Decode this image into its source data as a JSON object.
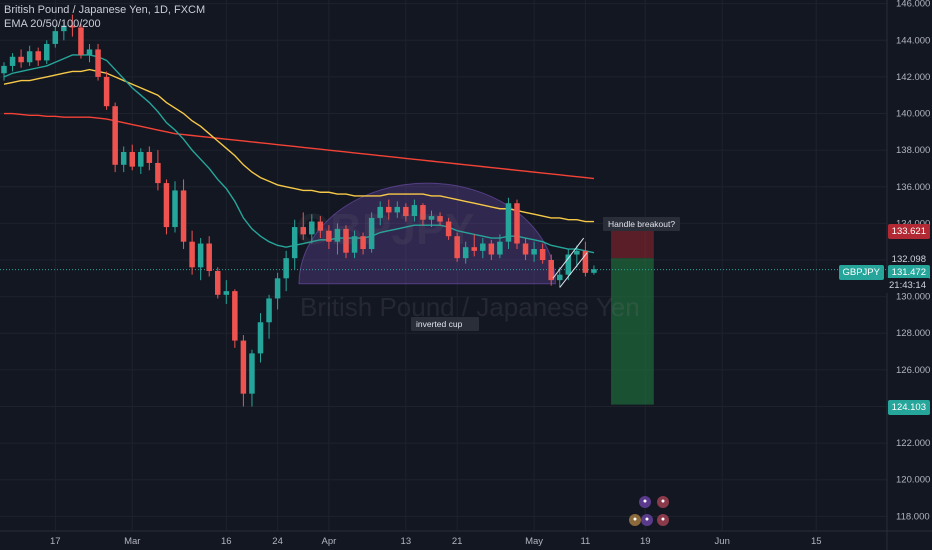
{
  "header": {
    "title": "British Pound / Japanese Yen, 1D, FXCM",
    "indicator": "EMA 20/50/100/200"
  },
  "watermark": {
    "symbol": "GBPJPY",
    "name": "British Pound / Japanese Yen"
  },
  "annotations": {
    "handle": "Handle breakout?",
    "cup": "inverted cup"
  },
  "price_tags": {
    "stop": "133.621",
    "entry": "132.098",
    "symbol": "GBPJPY",
    "last": "131.472",
    "countdown": "21:43:14",
    "target": "124.103"
  },
  "colors": {
    "background": "#131722",
    "up": "#26a69a",
    "down": "#ef5350",
    "ema20": "#26a69a",
    "ema50": "#f7c948",
    "ema200": "#f44336",
    "cup_fill": "#7e57c2"
  },
  "chart_data": {
    "type": "candlestick",
    "title": "British Pound / Japanese Yen, 1D, FXCM",
    "y_ticks": [
      118,
      120,
      122,
      124,
      126,
      128,
      130,
      132,
      134,
      136,
      138,
      140,
      142,
      144,
      146
    ],
    "y_tick_labels": [
      "118.000",
      "120.000",
      "122.000",
      "124.000",
      "126.000",
      "128.000",
      "130.000",
      "132.000",
      "134.000",
      "136.000",
      "138.000",
      "140.000",
      "142.000",
      "144.000",
      "146.000"
    ],
    "ylim": [
      117.2,
      146.2
    ],
    "x_ticks": [
      {
        "i": 6,
        "label": "17"
      },
      {
        "i": 15,
        "label": "Mar"
      },
      {
        "i": 26,
        "label": "16"
      },
      {
        "i": 32,
        "label": "24"
      },
      {
        "i": 38,
        "label": "Apr"
      },
      {
        "i": 47,
        "label": "13"
      },
      {
        "i": 53,
        "label": "21"
      },
      {
        "i": 62,
        "label": "May"
      },
      {
        "i": 68,
        "label": "11"
      },
      {
        "i": 75,
        "label": "19"
      },
      {
        "i": 84,
        "label": "Jun"
      },
      {
        "i": 95,
        "label": "15"
      }
    ],
    "candles": [
      {
        "o": 142.2,
        "h": 142.8,
        "l": 141.8,
        "c": 142.6
      },
      {
        "o": 142.6,
        "h": 143.3,
        "l": 142.3,
        "c": 143.1
      },
      {
        "o": 143.1,
        "h": 143.5,
        "l": 142.5,
        "c": 142.8
      },
      {
        "o": 142.8,
        "h": 143.7,
        "l": 142.6,
        "c": 143.4
      },
      {
        "o": 143.4,
        "h": 143.6,
        "l": 142.6,
        "c": 142.9
      },
      {
        "o": 142.9,
        "h": 144.0,
        "l": 142.7,
        "c": 143.8
      },
      {
        "o": 143.8,
        "h": 144.8,
        "l": 143.6,
        "c": 144.5
      },
      {
        "o": 144.5,
        "h": 145.0,
        "l": 144.0,
        "c": 144.8
      },
      {
        "o": 144.8,
        "h": 145.4,
        "l": 144.2,
        "c": 144.7
      },
      {
        "o": 144.7,
        "h": 144.9,
        "l": 143.0,
        "c": 143.2
      },
      {
        "o": 143.2,
        "h": 143.8,
        "l": 142.8,
        "c": 143.5
      },
      {
        "o": 143.5,
        "h": 143.8,
        "l": 141.8,
        "c": 142.0
      },
      {
        "o": 142.0,
        "h": 142.3,
        "l": 140.2,
        "c": 140.4
      },
      {
        "o": 140.4,
        "h": 140.6,
        "l": 136.8,
        "c": 137.2
      },
      {
        "o": 137.2,
        "h": 138.2,
        "l": 136.8,
        "c": 137.9
      },
      {
        "o": 137.9,
        "h": 138.3,
        "l": 136.9,
        "c": 137.1
      },
      {
        "o": 137.1,
        "h": 138.1,
        "l": 136.7,
        "c": 137.9
      },
      {
        "o": 137.9,
        "h": 138.2,
        "l": 136.9,
        "c": 137.3
      },
      {
        "o": 137.3,
        "h": 138.0,
        "l": 135.8,
        "c": 136.2
      },
      {
        "o": 136.2,
        "h": 136.4,
        "l": 133.4,
        "c": 133.8
      },
      {
        "o": 133.8,
        "h": 136.3,
        "l": 133.5,
        "c": 135.8
      },
      {
        "o": 135.8,
        "h": 136.4,
        "l": 132.6,
        "c": 133.0
      },
      {
        "o": 133.0,
        "h": 133.6,
        "l": 131.2,
        "c": 131.6
      },
      {
        "o": 131.6,
        "h": 133.2,
        "l": 130.9,
        "c": 132.9
      },
      {
        "o": 132.9,
        "h": 133.3,
        "l": 131.1,
        "c": 131.4
      },
      {
        "o": 131.4,
        "h": 131.6,
        "l": 129.9,
        "c": 130.1
      },
      {
        "o": 130.1,
        "h": 130.9,
        "l": 129.6,
        "c": 130.3
      },
      {
        "o": 130.3,
        "h": 130.4,
        "l": 127.2,
        "c": 127.6
      },
      {
        "o": 127.6,
        "h": 127.9,
        "l": 124.0,
        "c": 124.7
      },
      {
        "o": 124.7,
        "h": 127.1,
        "l": 124.0,
        "c": 126.9
      },
      {
        "o": 126.9,
        "h": 129.1,
        "l": 126.4,
        "c": 128.6
      },
      {
        "o": 128.6,
        "h": 130.1,
        "l": 127.7,
        "c": 129.9
      },
      {
        "o": 129.9,
        "h": 131.3,
        "l": 129.3,
        "c": 131.0
      },
      {
        "o": 131.0,
        "h": 132.5,
        "l": 130.3,
        "c": 132.1
      },
      {
        "o": 132.1,
        "h": 134.2,
        "l": 131.5,
        "c": 133.8
      },
      {
        "o": 133.8,
        "h": 134.6,
        "l": 133.1,
        "c": 133.4
      },
      {
        "o": 133.4,
        "h": 134.5,
        "l": 132.9,
        "c": 134.1
      },
      {
        "o": 134.1,
        "h": 134.4,
        "l": 133.2,
        "c": 133.6
      },
      {
        "o": 133.6,
        "h": 133.9,
        "l": 132.6,
        "c": 133.0
      },
      {
        "o": 133.0,
        "h": 134.0,
        "l": 132.3,
        "c": 133.7
      },
      {
        "o": 133.7,
        "h": 133.9,
        "l": 132.1,
        "c": 132.4
      },
      {
        "o": 132.4,
        "h": 133.6,
        "l": 132.1,
        "c": 133.3
      },
      {
        "o": 133.3,
        "h": 133.5,
        "l": 132.3,
        "c": 132.6
      },
      {
        "o": 132.6,
        "h": 134.6,
        "l": 132.4,
        "c": 134.3
      },
      {
        "o": 134.3,
        "h": 135.2,
        "l": 133.9,
        "c": 134.9
      },
      {
        "o": 134.9,
        "h": 135.3,
        "l": 134.2,
        "c": 134.6
      },
      {
        "o": 134.6,
        "h": 135.2,
        "l": 134.3,
        "c": 134.9
      },
      {
        "o": 134.9,
        "h": 135.1,
        "l": 134.1,
        "c": 134.4
      },
      {
        "o": 134.4,
        "h": 135.3,
        "l": 134.1,
        "c": 135.0
      },
      {
        "o": 135.0,
        "h": 135.1,
        "l": 133.9,
        "c": 134.2
      },
      {
        "o": 134.2,
        "h": 134.7,
        "l": 133.8,
        "c": 134.4
      },
      {
        "o": 134.4,
        "h": 134.6,
        "l": 133.9,
        "c": 134.1
      },
      {
        "o": 134.1,
        "h": 134.3,
        "l": 133.1,
        "c": 133.3
      },
      {
        "o": 133.3,
        "h": 133.5,
        "l": 131.9,
        "c": 132.1
      },
      {
        "o": 132.1,
        "h": 133.0,
        "l": 131.8,
        "c": 132.7
      },
      {
        "o": 132.7,
        "h": 133.4,
        "l": 132.2,
        "c": 132.5
      },
      {
        "o": 132.5,
        "h": 133.2,
        "l": 132.1,
        "c": 132.9
      },
      {
        "o": 132.9,
        "h": 133.1,
        "l": 132.0,
        "c": 132.3
      },
      {
        "o": 132.3,
        "h": 133.4,
        "l": 132.1,
        "c": 133.0
      },
      {
        "o": 133.0,
        "h": 135.4,
        "l": 132.6,
        "c": 135.1
      },
      {
        "o": 135.1,
        "h": 135.3,
        "l": 132.6,
        "c": 132.9
      },
      {
        "o": 132.9,
        "h": 133.2,
        "l": 132.0,
        "c": 132.3
      },
      {
        "o": 132.3,
        "h": 133.0,
        "l": 131.9,
        "c": 132.6
      },
      {
        "o": 132.6,
        "h": 132.9,
        "l": 131.8,
        "c": 132.0
      },
      {
        "o": 132.0,
        "h": 132.3,
        "l": 130.6,
        "c": 130.9
      },
      {
        "o": 130.9,
        "h": 131.6,
        "l": 130.5,
        "c": 131.2
      },
      {
        "o": 131.2,
        "h": 132.6,
        "l": 130.9,
        "c": 132.3
      },
      {
        "o": 132.3,
        "h": 132.8,
        "l": 131.6,
        "c": 132.5
      },
      {
        "o": 132.5,
        "h": 133.0,
        "l": 131.1,
        "c": 131.3
      },
      {
        "o": 131.3,
        "h": 131.7,
        "l": 131.2,
        "c": 131.5
      }
    ],
    "ema20": [
      142.0,
      142.2,
      142.3,
      142.4,
      142.5,
      142.6,
      142.8,
      143.0,
      143.2,
      143.2,
      143.2,
      143.1,
      142.9,
      142.4,
      141.9,
      141.4,
      141.0,
      140.6,
      140.1,
      139.5,
      139.1,
      138.6,
      138.0,
      137.5,
      137.0,
      136.4,
      135.9,
      135.2,
      134.3,
      133.7,
      133.3,
      133.0,
      132.8,
      132.7,
      132.8,
      132.9,
      133.0,
      133.1,
      133.1,
      133.2,
      133.2,
      133.2,
      133.2,
      133.3,
      133.5,
      133.6,
      133.7,
      133.8,
      133.9,
      133.9,
      133.9,
      133.9,
      133.8,
      133.6,
      133.5,
      133.4,
      133.3,
      133.2,
      133.2,
      133.3,
      133.3,
      133.2,
      133.1,
      133.0,
      132.8,
      132.7,
      132.6,
      132.6,
      132.5,
      132.4
    ],
    "ema50": [
      141.6,
      141.7,
      141.8,
      141.8,
      141.9,
      142.0,
      142.1,
      142.2,
      142.3,
      142.3,
      142.4,
      142.3,
      142.2,
      142.0,
      141.8,
      141.6,
      141.4,
      141.2,
      141.0,
      140.6,
      140.3,
      140.0,
      139.6,
      139.3,
      138.9,
      138.5,
      138.1,
      137.7,
      137.2,
      136.8,
      136.5,
      136.3,
      136.1,
      136.0,
      135.9,
      135.8,
      135.8,
      135.7,
      135.7,
      135.6,
      135.6,
      135.5,
      135.5,
      135.5,
      135.5,
      135.6,
      135.6,
      135.6,
      135.6,
      135.6,
      135.5,
      135.5,
      135.4,
      135.3,
      135.2,
      135.1,
      135.0,
      134.9,
      134.8,
      134.8,
      134.7,
      134.6,
      134.5,
      134.4,
      134.3,
      134.3,
      134.2,
      134.2,
      134.1,
      134.1
    ],
    "ema200": [
      140.0,
      140.0,
      139.95,
      139.9,
      139.9,
      139.85,
      139.85,
      139.8,
      139.8,
      139.8,
      139.8,
      139.75,
      139.7,
      139.6,
      139.5,
      139.4,
      139.3,
      139.2,
      139.1,
      139.0,
      138.9,
      138.85,
      138.8,
      138.75,
      138.7,
      138.65,
      138.6,
      138.55,
      138.5,
      138.45,
      138.4,
      138.35,
      138.3,
      138.25,
      138.2,
      138.15,
      138.1,
      138.05,
      138.0,
      137.95,
      137.9,
      137.85,
      137.8,
      137.75,
      137.7,
      137.65,
      137.6,
      137.55,
      137.5,
      137.45,
      137.4,
      137.35,
      137.3,
      137.25,
      137.2,
      137.15,
      137.1,
      137.05,
      137.0,
      136.95,
      136.9,
      136.85,
      136.8,
      136.75,
      136.7,
      136.65,
      136.6,
      136.55,
      136.5,
      136.45
    ],
    "position": {
      "stop": 133.621,
      "entry": 132.098,
      "target": 124.103,
      "x_start": 71,
      "x_end": 76
    },
    "last_price": 131.472
  }
}
